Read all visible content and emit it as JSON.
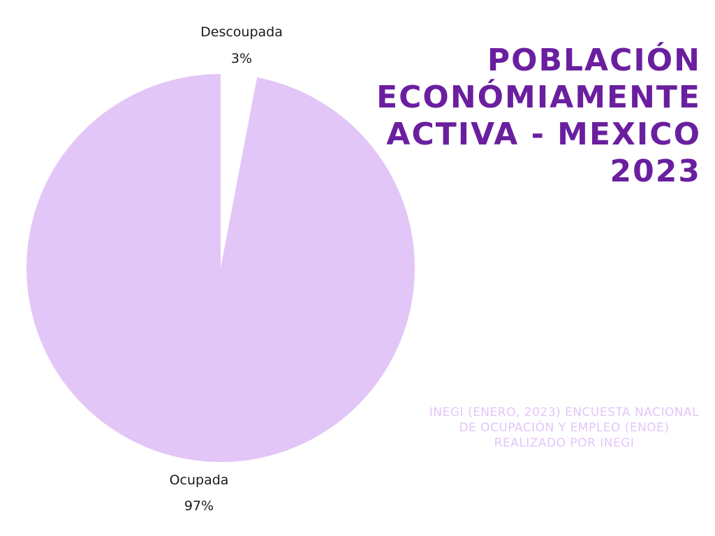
{
  "chart_data": {
    "type": "pie",
    "title": "POBLACIÓN\nECONÓMIAMENTE\nACTIVA - MEXICO\n2023",
    "source_note": "INEGI (ENERO, 2023) ENCUESTA NACIONAL DE OCUPACIÓN Y EMPLEO (ENOE) REALIZADO POR INEGI",
    "slices": [
      {
        "name": "Descoupada",
        "value": 3,
        "value_label": "3%",
        "color": "#ffffff"
      },
      {
        "name": "Ocupada",
        "value": 97,
        "value_label": "97%",
        "color": "#e3c6f8"
      }
    ],
    "legend": "none"
  },
  "colors": {
    "title": "#6a1f9f",
    "source": "#e3c6f8",
    "background": "#ffffff"
  }
}
